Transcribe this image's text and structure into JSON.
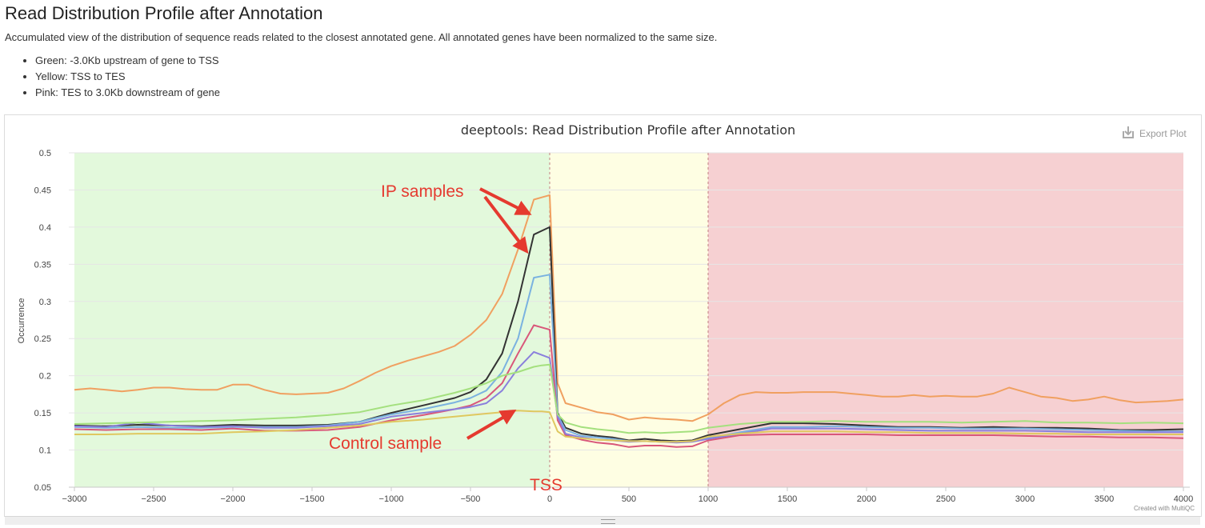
{
  "header": {
    "title": "Read Distribution Profile after Annotation",
    "description": "Accumulated view of the distribution of sequence reads related to the closest annotated gene. All annotated genes have been normalized to the same size.",
    "regions": [
      "Green: -3.0Kb upstream of gene to TSS",
      "Yellow: TSS to TES",
      "Pink: TES to 3.0Kb downstream of gene"
    ]
  },
  "toolbar": {
    "export_label": "Export Plot"
  },
  "footer": {
    "credit": "Created with MultiQC"
  },
  "colors": {
    "upstream_band": "#e3f9dc",
    "gene_body_band": "#fefee3",
    "downstream_band": "#f6d0d2",
    "annotation": "#e53a2f"
  },
  "annotations": {
    "ip_samples": "IP samples",
    "control_sample": "Control sample",
    "tss": "TSS"
  },
  "chart_data": {
    "type": "line",
    "title": "deeptools: Read Distribution Profile after Annotation",
    "xlabel": "",
    "ylabel": "Occurrence",
    "xlim": [
      -3000,
      4000
    ],
    "ylim": [
      0.05,
      0.5
    ],
    "x_ticks": [
      -3000,
      -2500,
      -2000,
      -1500,
      -1000,
      -500,
      0,
      500,
      1000,
      1500,
      2000,
      2500,
      3000,
      3500,
      4000
    ],
    "y_ticks": [
      0.05,
      0.1,
      0.15,
      0.2,
      0.25,
      0.3,
      0.35,
      0.4,
      0.45,
      0.5
    ],
    "x_tick_labels": [
      "−3000",
      "−2500",
      "−2000",
      "−1500",
      "−1000",
      "−500",
      "0",
      "500",
      "1000",
      "1500",
      "2000",
      "2500",
      "3000",
      "3500",
      "4000"
    ],
    "y_tick_labels": [
      "0.05",
      "0.1",
      "0.15",
      "0.2",
      "0.25",
      "0.3",
      "0.35",
      "0.4",
      "0.45",
      "0.5"
    ],
    "grid": true,
    "legend": "none",
    "bands": [
      {
        "from": -3000,
        "to": 0
      },
      {
        "from": 0,
        "to": 1000
      },
      {
        "from": 1000,
        "to": 4000
      }
    ],
    "series": [
      {
        "color": "#f0a060",
        "x": [
          -3000,
          -2900,
          -2800,
          -2700,
          -2600,
          -2500,
          -2400,
          -2300,
          -2200,
          -2100,
          -2000,
          -1900,
          -1800,
          -1700,
          -1600,
          -1500,
          -1400,
          -1300,
          -1200,
          -1100,
          -1000,
          -900,
          -800,
          -700,
          -600,
          -500,
          -400,
          -300,
          -200,
          -100,
          -50,
          0,
          50,
          100,
          200,
          300,
          400,
          500,
          600,
          700,
          800,
          900,
          1000,
          1100,
          1200,
          1300,
          1400,
          1500,
          1600,
          1700,
          1800,
          1900,
          2000,
          2100,
          2200,
          2300,
          2400,
          2500,
          2600,
          2700,
          2800,
          2900,
          3000,
          3100,
          3200,
          3300,
          3400,
          3500,
          3600,
          3700,
          3800,
          3900,
          4000
        ],
        "y": [
          0.181,
          0.183,
          0.181,
          0.179,
          0.181,
          0.184,
          0.184,
          0.182,
          0.181,
          0.181,
          0.188,
          0.188,
          0.181,
          0.176,
          0.175,
          0.176,
          0.177,
          0.183,
          0.193,
          0.204,
          0.213,
          0.22,
          0.226,
          0.232,
          0.24,
          0.255,
          0.275,
          0.31,
          0.37,
          0.437,
          0.44,
          0.443,
          0.19,
          0.163,
          0.157,
          0.151,
          0.148,
          0.141,
          0.144,
          0.142,
          0.141,
          0.139,
          0.148,
          0.163,
          0.174,
          0.178,
          0.177,
          0.177,
          0.178,
          0.178,
          0.178,
          0.176,
          0.174,
          0.172,
          0.172,
          0.174,
          0.172,
          0.173,
          0.172,
          0.172,
          0.176,
          0.184,
          0.178,
          0.172,
          0.17,
          0.166,
          0.168,
          0.172,
          0.167,
          0.164,
          0.165,
          0.166,
          0.168
        ]
      },
      {
        "color": "#333333",
        "x": [
          -3000,
          -2800,
          -2600,
          -2400,
          -2200,
          -2000,
          -1800,
          -1600,
          -1400,
          -1200,
          -1000,
          -800,
          -600,
          -500,
          -400,
          -300,
          -200,
          -100,
          -50,
          0,
          50,
          100,
          200,
          300,
          400,
          500,
          600,
          700,
          800,
          900,
          1000,
          1200,
          1400,
          1600,
          1800,
          2000,
          2200,
          2400,
          2600,
          2800,
          3000,
          3200,
          3400,
          3600,
          3800,
          4000
        ],
        "y": [
          0.133,
          0.132,
          0.134,
          0.133,
          0.132,
          0.134,
          0.133,
          0.133,
          0.134,
          0.138,
          0.15,
          0.16,
          0.17,
          0.178,
          0.195,
          0.23,
          0.3,
          0.39,
          0.395,
          0.4,
          0.15,
          0.13,
          0.122,
          0.119,
          0.117,
          0.113,
          0.115,
          0.113,
          0.112,
          0.113,
          0.12,
          0.128,
          0.136,
          0.136,
          0.135,
          0.133,
          0.131,
          0.131,
          0.13,
          0.131,
          0.13,
          0.13,
          0.129,
          0.127,
          0.127,
          0.128
        ]
      },
      {
        "color": "#7ab2e0",
        "x": [
          -3000,
          -2800,
          -2600,
          -2400,
          -2200,
          -2000,
          -1800,
          -1600,
          -1400,
          -1200,
          -1000,
          -800,
          -600,
          -500,
          -400,
          -300,
          -200,
          -100,
          -50,
          0,
          50,
          100,
          200,
          300,
          400,
          500,
          600,
          700,
          800,
          900,
          1000,
          1200,
          1400,
          1600,
          1800,
          2000,
          2200,
          2400,
          2600,
          2800,
          3000,
          3200,
          3400,
          3600,
          3800,
          4000
        ],
        "y": [
          0.131,
          0.13,
          0.131,
          0.13,
          0.13,
          0.131,
          0.131,
          0.131,
          0.133,
          0.138,
          0.148,
          0.155,
          0.164,
          0.17,
          0.18,
          0.205,
          0.25,
          0.332,
          0.334,
          0.336,
          0.147,
          0.127,
          0.119,
          0.117,
          0.115,
          0.112,
          0.112,
          0.111,
          0.111,
          0.112,
          0.116,
          0.124,
          0.131,
          0.131,
          0.132,
          0.131,
          0.13,
          0.13,
          0.129,
          0.129,
          0.129,
          0.128,
          0.127,
          0.126,
          0.125,
          0.125
        ]
      },
      {
        "color": "#d9577a",
        "x": [
          -3000,
          -2800,
          -2600,
          -2400,
          -2200,
          -2000,
          -1800,
          -1600,
          -1400,
          -1200,
          -1000,
          -800,
          -600,
          -500,
          -400,
          -300,
          -200,
          -100,
          -50,
          0,
          50,
          100,
          200,
          300,
          400,
          500,
          600,
          700,
          800,
          900,
          1000,
          1200,
          1400,
          1600,
          1800,
          2000,
          2200,
          2400,
          2600,
          2800,
          3000,
          3200,
          3400,
          3600,
          3800,
          4000
        ],
        "y": [
          0.128,
          0.127,
          0.128,
          0.128,
          0.127,
          0.129,
          0.126,
          0.126,
          0.127,
          0.131,
          0.14,
          0.147,
          0.155,
          0.16,
          0.17,
          0.19,
          0.23,
          0.268,
          0.265,
          0.262,
          0.14,
          0.12,
          0.114,
          0.11,
          0.108,
          0.104,
          0.106,
          0.106,
          0.104,
          0.105,
          0.113,
          0.12,
          0.121,
          0.121,
          0.121,
          0.121,
          0.12,
          0.12,
          0.12,
          0.12,
          0.119,
          0.118,
          0.118,
          0.117,
          0.117,
          0.116
        ]
      },
      {
        "color": "#8a80dc",
        "x": [
          -3000,
          -2800,
          -2600,
          -2400,
          -2200,
          -2000,
          -1800,
          -1600,
          -1400,
          -1200,
          -1000,
          -800,
          -600,
          -500,
          -400,
          -300,
          -200,
          -100,
          -50,
          0,
          50,
          100,
          200,
          300,
          400,
          500,
          600,
          700,
          800,
          900,
          1000,
          1200,
          1400,
          1600,
          1800,
          2000,
          2200,
          2400,
          2600,
          2800,
          3000,
          3200,
          3400,
          3600,
          3800,
          4000
        ],
        "y": [
          0.132,
          0.131,
          0.137,
          0.133,
          0.131,
          0.132,
          0.13,
          0.13,
          0.132,
          0.135,
          0.145,
          0.15,
          0.155,
          0.158,
          0.163,
          0.18,
          0.21,
          0.232,
          0.228,
          0.224,
          0.145,
          0.122,
          0.117,
          0.114,
          0.113,
          0.111,
          0.112,
          0.111,
          0.11,
          0.111,
          0.115,
          0.122,
          0.129,
          0.129,
          0.129,
          0.128,
          0.127,
          0.126,
          0.126,
          0.126,
          0.126,
          0.125,
          0.124,
          0.124,
          0.124,
          0.124
        ]
      },
      {
        "color": "#a4e07e",
        "x": [
          -3000,
          -2800,
          -2600,
          -2400,
          -2200,
          -2000,
          -1800,
          -1600,
          -1400,
          -1200,
          -1000,
          -800,
          -600,
          -500,
          -400,
          -300,
          -200,
          -100,
          -50,
          0,
          50,
          100,
          200,
          300,
          400,
          500,
          600,
          700,
          800,
          900,
          1000,
          1200,
          1400,
          1600,
          1800,
          2000,
          2200,
          2400,
          2600,
          2800,
          3000,
          3200,
          3400,
          3600,
          3800,
          4000
        ],
        "y": [
          0.135,
          0.136,
          0.137,
          0.138,
          0.139,
          0.14,
          0.142,
          0.144,
          0.147,
          0.151,
          0.16,
          0.167,
          0.177,
          0.183,
          0.19,
          0.2,
          0.205,
          0.212,
          0.214,
          0.215,
          0.148,
          0.137,
          0.131,
          0.128,
          0.126,
          0.123,
          0.124,
          0.123,
          0.124,
          0.125,
          0.13,
          0.135,
          0.138,
          0.138,
          0.139,
          0.138,
          0.138,
          0.138,
          0.137,
          0.138,
          0.139,
          0.137,
          0.137,
          0.136,
          0.137,
          0.136
        ]
      },
      {
        "color": "#dfc860",
        "x": [
          -3000,
          -2800,
          -2600,
          -2400,
          -2200,
          -2000,
          -1800,
          -1600,
          -1400,
          -1200,
          -1000,
          -800,
          -600,
          -500,
          -400,
          -300,
          -200,
          -100,
          -50,
          0,
          50,
          100,
          200,
          300,
          400,
          500,
          600,
          700,
          800,
          900,
          1000,
          1200,
          1400,
          1600,
          1800,
          2000,
          2200,
          2400,
          2600,
          2800,
          3000,
          3200,
          3400,
          3600,
          3800,
          4000
        ],
        "y": [
          0.121,
          0.121,
          0.122,
          0.122,
          0.122,
          0.124,
          0.125,
          0.127,
          0.13,
          0.133,
          0.138,
          0.141,
          0.145,
          0.147,
          0.149,
          0.151,
          0.153,
          0.152,
          0.152,
          0.151,
          0.125,
          0.118,
          0.116,
          0.114,
          0.113,
          0.112,
          0.112,
          0.111,
          0.111,
          0.112,
          0.118,
          0.122,
          0.125,
          0.125,
          0.125,
          0.124,
          0.124,
          0.123,
          0.123,
          0.123,
          0.122,
          0.122,
          0.121,
          0.121,
          0.121,
          0.121
        ]
      }
    ]
  }
}
